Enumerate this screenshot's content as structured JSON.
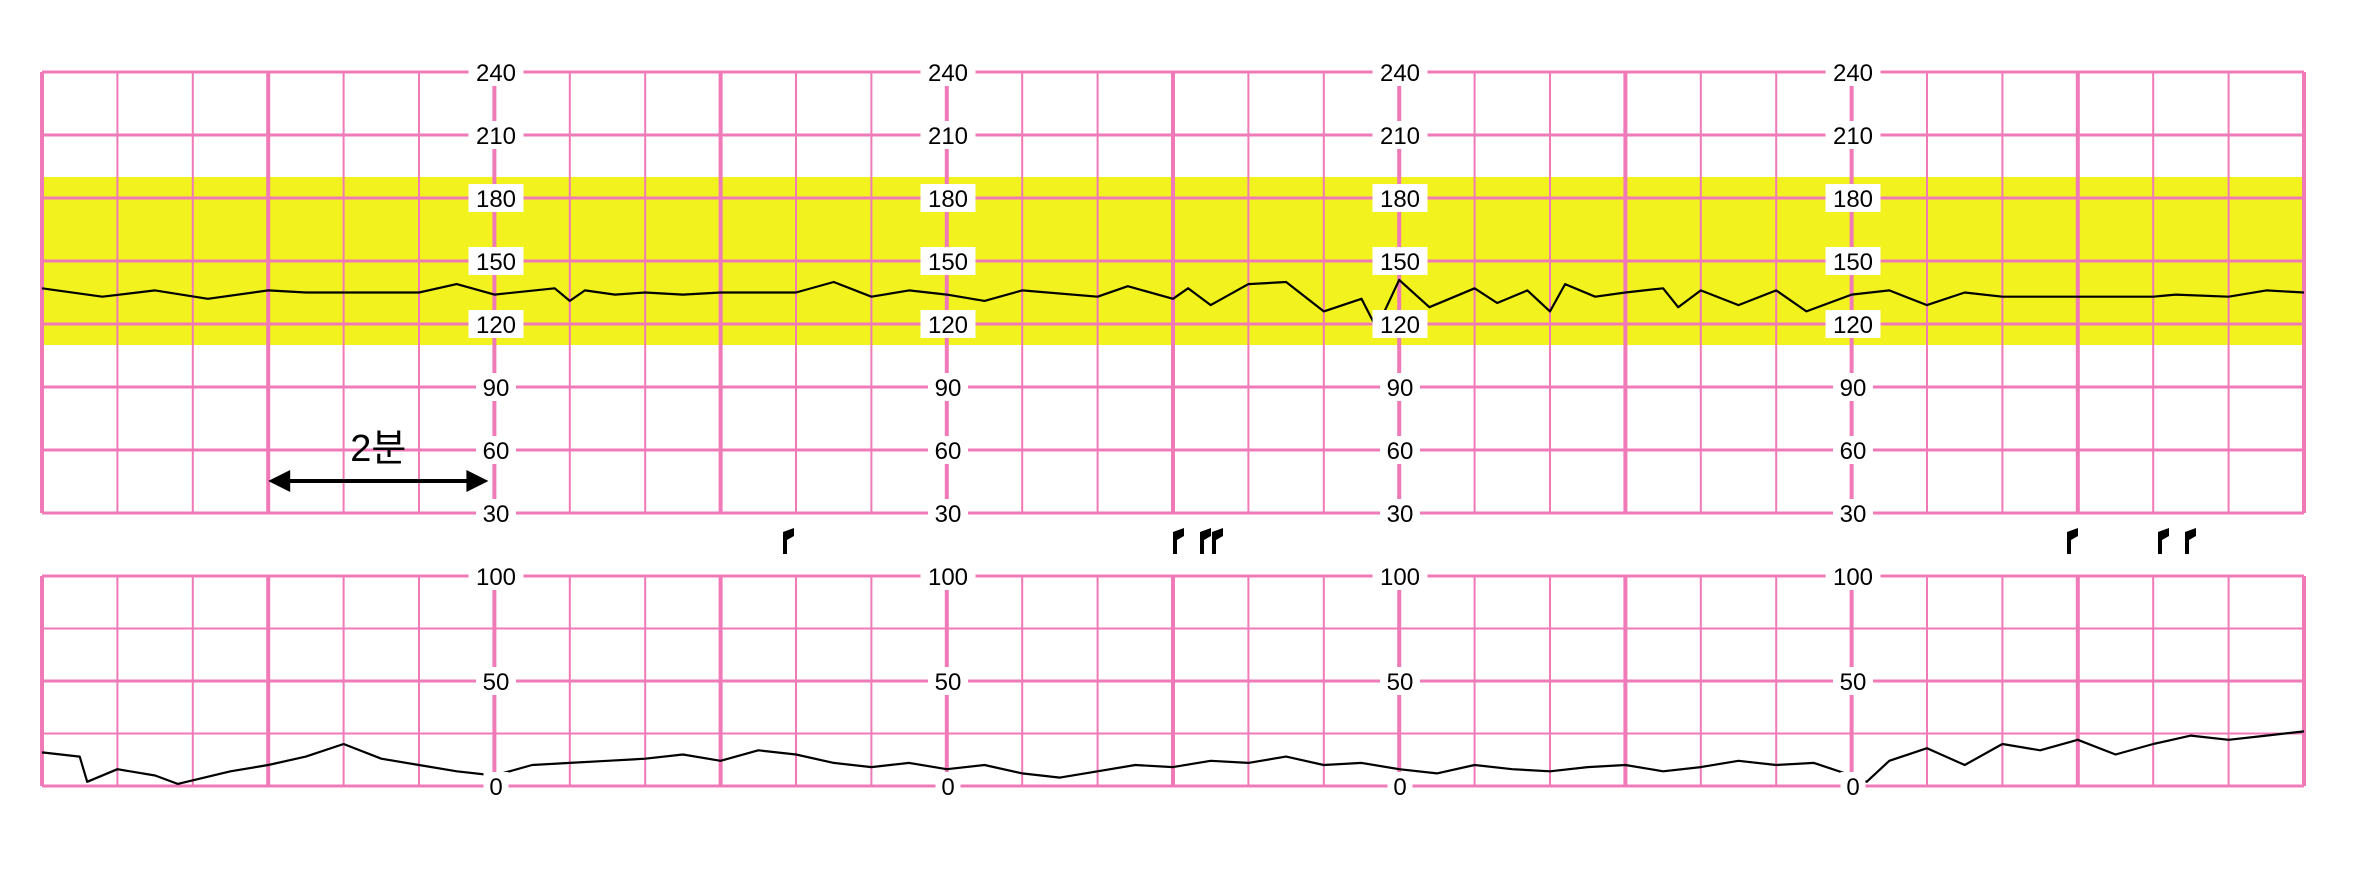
{
  "chart_data": [
    {
      "type": "line",
      "title": "",
      "xlabel": "",
      "ylabel": "",
      "ylim": [
        30,
        240
      ],
      "y_ticks": [
        240,
        210,
        180,
        150,
        120,
        90,
        60,
        30
      ],
      "y_tick_labels": [
        "240",
        "210",
        "180",
        "150",
        "120",
        "90",
        "60",
        "30"
      ],
      "x_range_min": [
        0,
        30
      ],
      "normal_band": [
        110,
        190
      ],
      "normal_band_color": "#f2f21e",
      "grid": true,
      "grid_color": "#f07ab8",
      "series": [
        {
          "name": "",
          "color": "#000000",
          "x": [
            0,
            0.8,
            1.5,
            2.2,
            3,
            3.5,
            4,
            5,
            5.5,
            6,
            6.8,
            7,
            7.2,
            7.6,
            8,
            8.5,
            9,
            10,
            10.5,
            11,
            11.5,
            12,
            12.5,
            13,
            14,
            14.4,
            15,
            15.2,
            15.5,
            16,
            16.5,
            17,
            17.5,
            17.7,
            18,
            18.4,
            19,
            19.3,
            19.7,
            20,
            20.2,
            20.6,
            21,
            21.5,
            21.7,
            22,
            22.5,
            23,
            23.4,
            24,
            24.5,
            25,
            25.5,
            26,
            27,
            28,
            28.3,
            29,
            29.5,
            30
          ],
          "y": [
            137,
            133,
            136,
            132,
            136,
            135,
            135,
            135,
            139,
            134,
            137,
            131,
            136,
            134,
            135,
            134,
            135,
            135,
            140,
            133,
            136,
            134,
            131,
            136,
            133,
            138,
            132,
            137,
            129,
            139,
            140,
            126,
            132,
            118,
            141,
            128,
            137,
            130,
            136,
            126,
            139,
            133,
            135,
            137,
            128,
            136,
            129,
            136,
            126,
            134,
            136,
            129,
            135,
            133,
            133,
            133,
            134,
            133,
            136,
            135
          ]
        }
      ]
    },
    {
      "type": "line",
      "title": "",
      "xlabel": "",
      "ylabel": "",
      "ylim": [
        0,
        100
      ],
      "y_ticks": [
        100,
        50,
        0
      ],
      "y_tick_labels": [
        "100",
        "50",
        "0"
      ],
      "x_range_min": [
        0,
        30
      ],
      "grid": true,
      "grid_color": "#f07ab8",
      "series": [
        {
          "name": "",
          "color": "#000000",
          "x": [
            0,
            0.5,
            0.6,
            1,
            1.5,
            1.8,
            2.5,
            3,
            3.5,
            4,
            4.5,
            5,
            5.5,
            6,
            6.5,
            7,
            7.5,
            8,
            8.5,
            9,
            9.5,
            10,
            10.5,
            11,
            11.5,
            12,
            12.5,
            13,
            13.5,
            14,
            14.5,
            15,
            15.5,
            16,
            16.5,
            17,
            17.5,
            18,
            18.5,
            19,
            19.5,
            20,
            20.5,
            21,
            21.5,
            22,
            22.5,
            23,
            23.5,
            24,
            24.2,
            24.5,
            25,
            25.5,
            26,
            26.5,
            27,
            27.5,
            28,
            28.5,
            29,
            29.5,
            30
          ],
          "y": [
            16,
            14,
            2,
            8,
            5,
            1,
            7,
            10,
            14,
            20,
            13,
            10,
            7,
            5,
            10,
            11,
            12,
            13,
            15,
            12,
            17,
            15,
            11,
            9,
            11,
            8,
            10,
            6,
            4,
            7,
            10,
            9,
            12,
            11,
            14,
            10,
            11,
            8,
            6,
            10,
            8,
            7,
            9,
            10,
            7,
            9,
            12,
            10,
            11,
            5,
            2,
            12,
            18,
            10,
            20,
            17,
            22,
            15,
            20,
            24,
            22,
            24,
            26
          ]
        }
      ]
    }
  ],
  "annotation": {
    "label": "2분"
  }
}
